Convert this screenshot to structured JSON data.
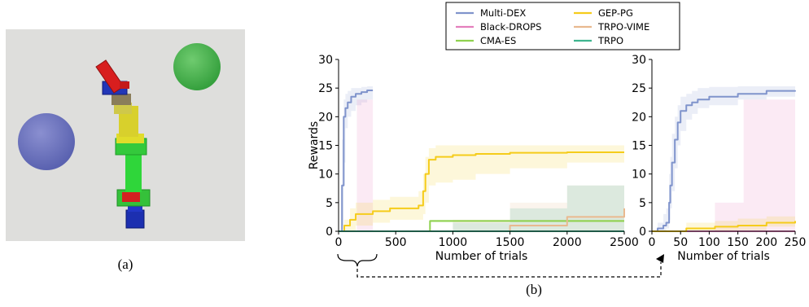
{
  "panel_labels": {
    "a": "(a)",
    "b": "(b)"
  },
  "legend": [
    {
      "name": "Multi-DEX",
      "color": "#8094cc"
    },
    {
      "name": "Black-DROPS",
      "color": "#e47fbd"
    },
    {
      "name": "CMA-ES",
      "color": "#8fd14f"
    },
    {
      "name": "GEP-PG",
      "color": "#f5cc1b"
    },
    {
      "name": "TRPO-VIME",
      "color": "#e9b98f"
    },
    {
      "name": "TRPO",
      "color": "#3fb58f"
    }
  ],
  "chart_data": [
    {
      "type": "line",
      "title": "",
      "xlabel": "Number of trials",
      "ylabel": "Rewards",
      "xlim": [
        0,
        2500
      ],
      "ylim": [
        0,
        30
      ],
      "xticks": [
        "0",
        "500",
        "1000",
        "1500",
        "2000",
        "2500"
      ],
      "yticks": [
        "0",
        "5",
        "10",
        "15",
        "20",
        "25",
        "30"
      ],
      "grid": false,
      "series": [
        {
          "name": "Multi-DEX",
          "color": "#8094cc",
          "x": [
            0,
            30,
            45,
            60,
            80,
            110,
            150,
            200,
            250,
            300
          ],
          "y": [
            0,
            8,
            20,
            21.5,
            22.5,
            23.5,
            24,
            24.3,
            24.6,
            24.6
          ],
          "lo": [
            0,
            1,
            12,
            18,
            20,
            21,
            22,
            22.5,
            23,
            23
          ],
          "hi": [
            0,
            16,
            23,
            24,
            24.5,
            25,
            25,
            25.2,
            25.3,
            25.3
          ]
        },
        {
          "name": "Black-DROPS",
          "color": "#e47fbd",
          "x": [
            0,
            150,
            160,
            300
          ],
          "y": [
            0,
            0,
            0,
            0
          ],
          "lo": [
            0,
            0,
            0,
            0
          ],
          "hi": [
            0,
            0,
            23,
            23
          ]
        },
        {
          "name": "GEP-PG",
          "color": "#f5cc1b",
          "x": [
            0,
            50,
            100,
            150,
            300,
            450,
            600,
            700,
            740,
            760,
            790,
            850,
            1000,
            1200,
            1500,
            2000,
            2500
          ],
          "y": [
            0,
            1,
            2,
            3,
            3.5,
            4,
            4,
            4.5,
            7,
            10,
            12.5,
            13,
            13.3,
            13.5,
            13.7,
            13.8,
            13.8
          ],
          "lo": [
            0,
            0,
            0,
            1,
            1.5,
            2,
            2,
            2,
            3,
            5,
            8,
            8.5,
            9,
            10,
            11,
            12,
            12.5
          ],
          "hi": [
            0,
            2,
            4,
            5,
            5.5,
            6,
            6,
            7,
            10,
            13,
            14.5,
            15,
            15,
            15,
            15,
            15,
            15
          ]
        },
        {
          "name": "CMA-ES",
          "color": "#8fd14f",
          "x": [
            0,
            780,
            800,
            2500
          ],
          "y": [
            0,
            0,
            1.8,
            1.8
          ],
          "lo": [
            0,
            0,
            1.6,
            1.6
          ],
          "hi": [
            0,
            0,
            2,
            2
          ]
        },
        {
          "name": "TRPO-VIME",
          "color": "#e9b98f",
          "x": [
            0,
            1000,
            1500,
            2000,
            2500
          ],
          "y": [
            0,
            0,
            1,
            2.5,
            4
          ],
          "lo": [
            0,
            0,
            0,
            0,
            0
          ],
          "hi": [
            0,
            2,
            5,
            8,
            10
          ]
        },
        {
          "name": "TRPO",
          "color": "#3fb58f",
          "x": [
            0,
            1000,
            1500,
            2000,
            2500
          ],
          "y": [
            0,
            0,
            0,
            0,
            0
          ],
          "lo": [
            0,
            0,
            0,
            0,
            0
          ],
          "hi": [
            0,
            1.5,
            4,
            8,
            11
          ]
        }
      ]
    },
    {
      "type": "line",
      "title": "",
      "xlabel": "Number of trials",
      "ylabel": "",
      "xlim": [
        0,
        250
      ],
      "ylim": [
        0,
        30
      ],
      "xticks": [
        "0",
        "50",
        "100",
        "150",
        "200",
        "250"
      ],
      "yticks": [
        "0",
        "5",
        "10",
        "15",
        "20",
        "25",
        "30"
      ],
      "grid": false,
      "series": [
        {
          "name": "Multi-DEX",
          "color": "#8094cc",
          "x": [
            0,
            10,
            20,
            25,
            30,
            32,
            35,
            40,
            45,
            50,
            60,
            70,
            80,
            100,
            150,
            200,
            250
          ],
          "y": [
            0,
            0.5,
            1,
            1.5,
            5,
            8,
            12,
            16,
            19,
            21,
            22,
            22.5,
            23,
            23.5,
            24,
            24.5,
            24.6
          ],
          "lo": [
            0,
            0,
            0,
            0.5,
            2,
            4,
            7,
            11,
            15,
            17.5,
            19.5,
            20.5,
            21.5,
            22,
            23,
            23.5,
            23.8
          ],
          "hi": [
            0,
            1.5,
            3,
            4,
            10,
            13,
            17,
            20,
            22,
            23.5,
            24,
            24.5,
            25,
            25.2,
            25.3,
            25.3,
            25.3
          ]
        },
        {
          "name": "Black-DROPS",
          "color": "#e47fbd",
          "x": [
            0,
            105,
            110,
            150,
            160,
            250
          ],
          "y": [
            0,
            0,
            0,
            0,
            0,
            0
          ],
          "lo": [
            0,
            0,
            0,
            0,
            0,
            0
          ],
          "hi": [
            0,
            0,
            5,
            5,
            23,
            23
          ]
        },
        {
          "name": "GEP-PG",
          "color": "#f5cc1b",
          "x": [
            0,
            55,
            60,
            110,
            150,
            200,
            250
          ],
          "y": [
            0,
            0,
            0.5,
            0.8,
            1,
            1.5,
            1.8
          ],
          "lo": [
            0,
            0,
            0,
            0,
            0.2,
            0.8,
            1.2
          ],
          "hi": [
            0,
            0,
            1.5,
            1.8,
            2.2,
            2.6,
            2.8
          ]
        }
      ]
    }
  ]
}
